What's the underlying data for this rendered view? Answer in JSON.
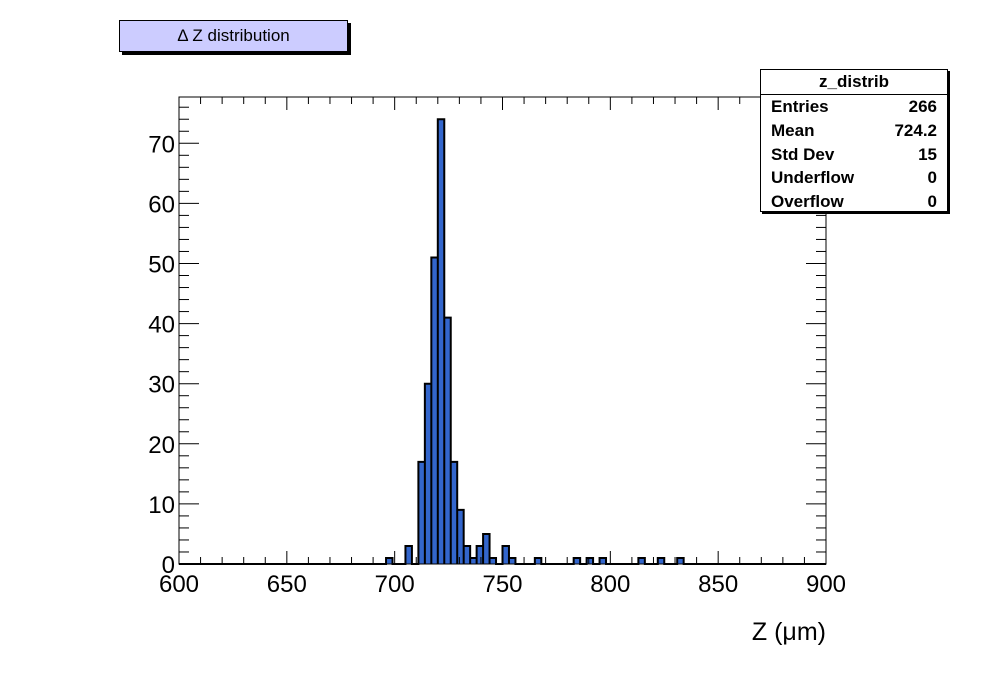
{
  "chart_data": {
    "type": "histogram",
    "title": "Δ Z distribution",
    "xlabel": "Z (μm)",
    "ylabel": "",
    "xlim": [
      600,
      900
    ],
    "ylim": [
      0,
      77.7
    ],
    "bin_width": 3,
    "x_ticks": [
      "600",
      "650",
      "700",
      "750",
      "800",
      "850",
      "900"
    ],
    "y_ticks": [
      "0",
      "10",
      "20",
      "30",
      "40",
      "50",
      "60",
      "70"
    ],
    "grid": false,
    "fill_color": "#3366cc",
    "bins": [
      {
        "x": 696,
        "count": 1
      },
      {
        "x": 705,
        "count": 3
      },
      {
        "x": 711,
        "count": 17
      },
      {
        "x": 714,
        "count": 30
      },
      {
        "x": 717,
        "count": 51
      },
      {
        "x": 720,
        "count": 74
      },
      {
        "x": 723,
        "count": 41
      },
      {
        "x": 726,
        "count": 17
      },
      {
        "x": 729,
        "count": 9
      },
      {
        "x": 732,
        "count": 3
      },
      {
        "x": 735,
        "count": 1
      },
      {
        "x": 738,
        "count": 3
      },
      {
        "x": 741,
        "count": 5
      },
      {
        "x": 744,
        "count": 1
      },
      {
        "x": 750,
        "count": 3
      },
      {
        "x": 753,
        "count": 1
      },
      {
        "x": 765,
        "count": 1
      },
      {
        "x": 783,
        "count": 1
      },
      {
        "x": 789,
        "count": 1
      },
      {
        "x": 795,
        "count": 1
      },
      {
        "x": 813,
        "count": 1
      },
      {
        "x": 822,
        "count": 1
      },
      {
        "x": 831,
        "count": 1
      }
    ]
  },
  "stats": {
    "name": "z_distrib",
    "rows": [
      {
        "label": "Entries",
        "value": "266"
      },
      {
        "label": "Mean",
        "value": "724.2"
      },
      {
        "label": "Std Dev",
        "value": "15"
      },
      {
        "label": "Underflow",
        "value": "0"
      },
      {
        "label": "Overflow",
        "value": "0"
      }
    ]
  }
}
